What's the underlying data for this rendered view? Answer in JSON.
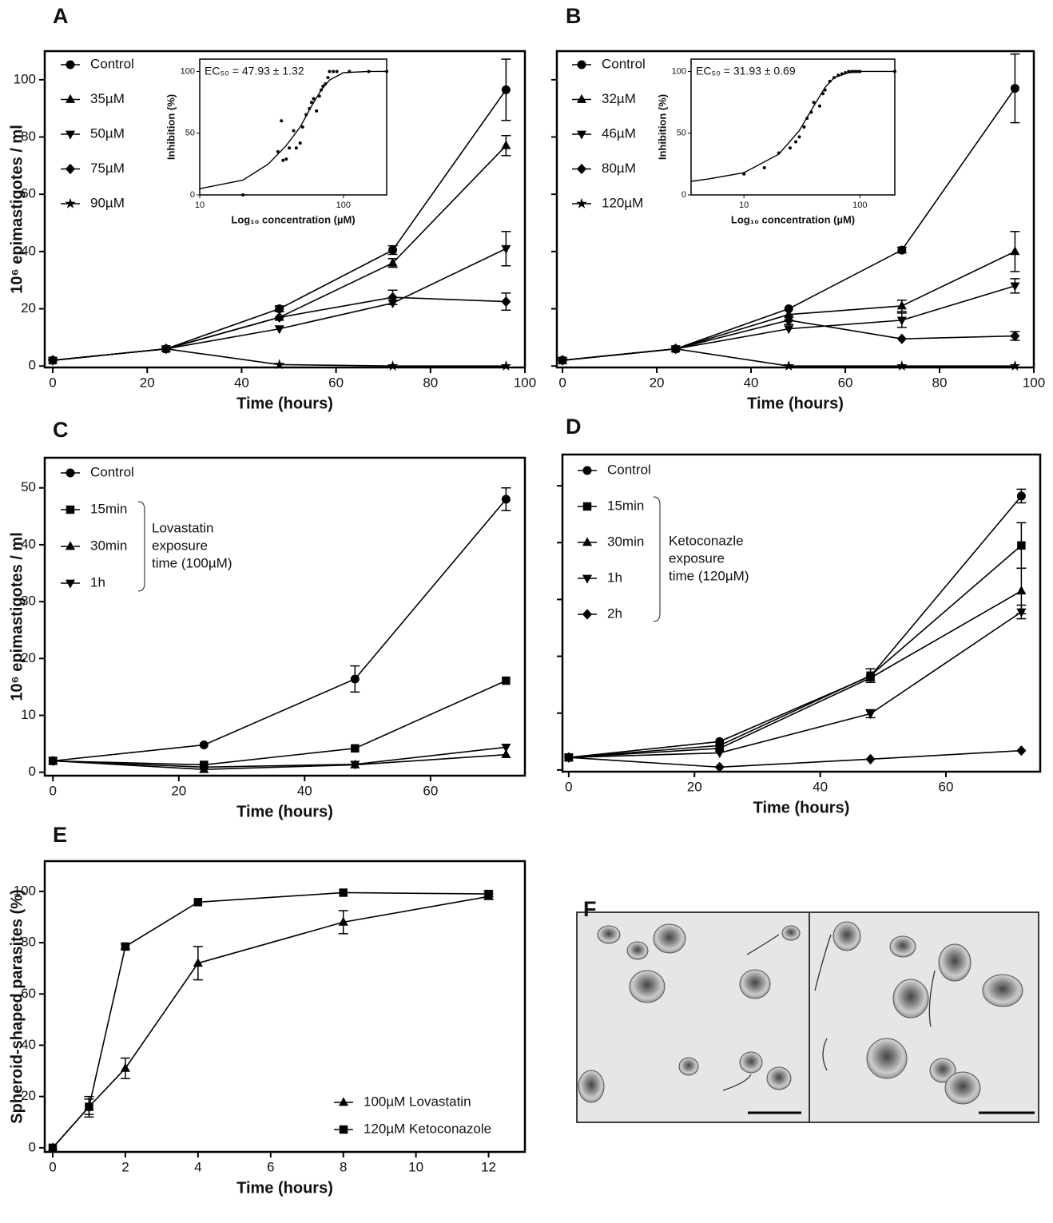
{
  "chart_data": [
    {
      "type": "line",
      "label": "A",
      "xlabel": "Time (hours)",
      "ylabel": "10⁶ epimastigotes / ml",
      "x": [
        0,
        24,
        48,
        72,
        96
      ],
      "xlim": [
        -1.7,
        100
      ],
      "ylim": [
        -0.5,
        110
      ],
      "xticks": [
        0,
        20,
        40,
        60,
        80,
        100
      ],
      "yticks": [
        0,
        20,
        40,
        60,
        80,
        100
      ],
      "show_ytick_labels": true,
      "legend": "top-left",
      "series": [
        {
          "name": "Control",
          "marker": "circle",
          "color": "#000",
          "values": [
            2,
            6,
            20,
            40.5,
            96.5
          ],
          "errors": [
            null,
            null,
            1,
            1.5,
            10.7
          ]
        },
        {
          "name": "35µM",
          "marker": "triangle",
          "color": "#000",
          "values": [
            2,
            6,
            17,
            36,
            77
          ],
          "errors": [
            null,
            null,
            null,
            1.5,
            3.5
          ]
        },
        {
          "name": "50µM",
          "marker": "triangle-down",
          "color": "#000",
          "values": [
            2,
            6,
            13,
            22,
            41
          ],
          "errors": [
            null,
            null,
            null,
            null,
            6
          ]
        },
        {
          "name": "75µM",
          "marker": "diamond",
          "color": "#000",
          "values": [
            2,
            6,
            17,
            24,
            22.5
          ],
          "errors": [
            null,
            null,
            null,
            2.5,
            3
          ]
        },
        {
          "name": "90µM",
          "marker": "star",
          "color": "#000",
          "values": [
            2,
            6,
            0.5,
            0,
            0
          ],
          "errors": [
            null,
            null,
            null,
            null,
            null
          ]
        }
      ]
    },
    {
      "type": "dose_response",
      "xlabel": "Log₁₀ concentration (µM)",
      "ylabel": "Inhibition (%)",
      "annotation": "EC₅₀ = 47.93 ± 1.32",
      "log_x": true,
      "xlim": [
        10,
        200
      ],
      "ylim": [
        0,
        110
      ],
      "xticks": [
        10,
        100
      ],
      "yticks": [
        0,
        50,
        100
      ],
      "points": {
        "x": [
          20,
          35,
          37,
          38,
          40,
          42,
          45,
          47,
          50,
          52,
          55,
          58,
          60,
          62,
          65,
          68,
          70,
          72,
          75,
          78,
          80,
          85,
          90,
          110,
          150,
          200
        ],
        "y": [
          0,
          35,
          60,
          28,
          29,
          38,
          52,
          38,
          42,
          55,
          65,
          70,
          75,
          78,
          68,
          80,
          85,
          88,
          90,
          95,
          100,
          100,
          100,
          100,
          100,
          100
        ]
      },
      "fit": {
        "x": [
          10,
          20,
          30,
          40,
          50,
          60,
          70,
          80,
          100,
          150,
          200
        ],
        "y": [
          5,
          12,
          25,
          40,
          55,
          72,
          85,
          93,
          99,
          100,
          100
        ]
      }
    },
    {
      "type": "line",
      "label": "B",
      "xlabel": "Time (hours)",
      "x": [
        0,
        24,
        48,
        72,
        96
      ],
      "xlim": [
        -1.2,
        100
      ],
      "ylim": [
        -0.5,
        110
      ],
      "xticks": [
        0,
        20,
        40,
        60,
        80,
        100
      ],
      "yticks": [
        0,
        20,
        40,
        60,
        80,
        100
      ],
      "show_ytick_labels": false,
      "legend": "top-left",
      "series": [
        {
          "name": "Control",
          "marker": "circle",
          "color": "#000",
          "values": [
            2,
            6,
            20,
            40.5,
            97
          ],
          "errors": [
            null,
            null,
            null,
            1,
            12
          ]
        },
        {
          "name": "32µM",
          "marker": "triangle",
          "color": "#000",
          "values": [
            2,
            6,
            18,
            21,
            40
          ],
          "errors": [
            null,
            null,
            null,
            2,
            7
          ]
        },
        {
          "name": "46µM",
          "marker": "triangle-down",
          "color": "#000",
          "values": [
            2,
            6,
            13,
            16,
            28
          ],
          "errors": [
            null,
            null,
            null,
            2.5,
            2.5
          ]
        },
        {
          "name": "80µM",
          "marker": "diamond",
          "color": "#000",
          "values": [
            2,
            6,
            16,
            9.5,
            10.5
          ],
          "errors": [
            null,
            null,
            1.5,
            null,
            1.5
          ]
        },
        {
          "name": "120µM",
          "marker": "star",
          "color": "#000",
          "values": [
            2,
            6,
            0,
            0,
            0
          ],
          "errors": [
            null,
            null,
            null,
            null,
            null
          ]
        }
      ]
    },
    {
      "type": "dose_response",
      "xlabel": "Log₁₀ concentration (µM)",
      "ylabel": "Inhibition (%)",
      "annotation": "EC₅₀ = 31.93 ± 0.69",
      "log_x": true,
      "xlim": [
        3.5,
        200
      ],
      "ylim": [
        0,
        110
      ],
      "xticks": [
        10,
        100
      ],
      "yticks": [
        0,
        50,
        100
      ],
      "points": {
        "x": [
          10,
          15,
          20,
          25,
          28,
          30,
          33,
          35,
          38,
          40,
          45,
          48,
          50,
          55,
          60,
          65,
          70,
          75,
          80,
          85,
          90,
          95,
          100,
          200
        ],
        "y": [
          17,
          22,
          34,
          38,
          43,
          47,
          55,
          62,
          67,
          75,
          72,
          82,
          85,
          92,
          95,
          97,
          98,
          99,
          100,
          100,
          100,
          100,
          100,
          100
        ]
      },
      "fit": {
        "x": [
          3.5,
          5,
          10,
          20,
          30,
          40,
          50,
          60,
          80,
          100,
          200
        ],
        "y": [
          11,
          13,
          18,
          33,
          52,
          72,
          87,
          95,
          99,
          100,
          100
        ]
      }
    },
    {
      "type": "line",
      "label": "C",
      "xlabel": "Time (hours)",
      "ylabel": "10⁶ epimastigotes / ml",
      "x": [
        0,
        24,
        48,
        72
      ],
      "xlim": [
        -1.3,
        75
      ],
      "ylim": [
        -0.6,
        55.3
      ],
      "xticks": [
        0,
        20,
        40,
        60
      ],
      "yticks": [
        0,
        10,
        20,
        30,
        40,
        50
      ],
      "show_ytick_labels": true,
      "legend": "top-left",
      "bracket_text": [
        "Lovastatin",
        "exposure",
        "time (100µM)"
      ],
      "series": [
        {
          "name": "Control",
          "marker": "circle",
          "color": "#000",
          "values": [
            2,
            4.8,
            16.4,
            48
          ],
          "errors": [
            null,
            null,
            2.3,
            2
          ]
        },
        {
          "name": "15min",
          "marker": "square",
          "color": "#000",
          "values": [
            2,
            1.3,
            4.2,
            16.1
          ],
          "errors": [
            null,
            null,
            null,
            null
          ]
        },
        {
          "name": "30min",
          "marker": "triangle",
          "color": "#000",
          "values": [
            2,
            0.5,
            1.3,
            3.1
          ],
          "errors": [
            null,
            null,
            null,
            null
          ]
        },
        {
          "name": "1h",
          "marker": "triangle-down",
          "color": "#000",
          "values": [
            2,
            0.9,
            1.4,
            4.4
          ],
          "errors": [
            null,
            null,
            null,
            null
          ]
        }
      ]
    },
    {
      "type": "line",
      "label": "D",
      "xlabel": "Time (hours)",
      "x": [
        0,
        24,
        48,
        72
      ],
      "xlim": [
        -1,
        75
      ],
      "ylim": [
        -0.3,
        55.5
      ],
      "xticks": [
        0,
        20,
        40,
        60
      ],
      "yticks": [
        0,
        10,
        20,
        30,
        40,
        50
      ],
      "show_ytick_labels": false,
      "legend": "top-left",
      "bracket_text": [
        "Ketoconazle",
        "exposure",
        "time (120µM)"
      ],
      "series": [
        {
          "name": "Control",
          "marker": "circle",
          "color": "#000",
          "values": [
            2.2,
            5,
            16.5,
            48.2
          ],
          "errors": [
            null,
            null,
            null,
            1.2
          ]
        },
        {
          "name": "15min",
          "marker": "square",
          "color": "#000",
          "values": [
            2.2,
            4.3,
            16.6,
            39.5
          ],
          "errors": [
            null,
            null,
            1.2,
            4
          ]
        },
        {
          "name": "30min",
          "marker": "triangle",
          "color": "#000",
          "values": [
            2.2,
            3.8,
            16.2,
            31.5
          ],
          "errors": [
            null,
            null,
            null,
            4
          ]
        },
        {
          "name": "1h",
          "marker": "triangle-down",
          "color": "#000",
          "values": [
            2.2,
            3,
            9.9,
            27.8
          ],
          "errors": [
            null,
            null,
            0.7,
            1.2
          ]
        },
        {
          "name": "2h",
          "marker": "diamond",
          "color": "#000",
          "values": [
            2.2,
            0.5,
            1.9,
            3.4
          ],
          "errors": [
            null,
            null,
            null,
            null
          ]
        }
      ]
    },
    {
      "type": "line",
      "label": "E",
      "xlabel": "Time (hours)",
      "ylabel": "Spheroid-shaped parasites (%)",
      "x": [
        0,
        1,
        2,
        4,
        8,
        12
      ],
      "xlim": [
        -0.22,
        13
      ],
      "ylim": [
        -1.6,
        111.8
      ],
      "xticks": [
        0,
        2,
        4,
        6,
        8,
        10,
        12
      ],
      "yticks": [
        0,
        20,
        40,
        60,
        80,
        100
      ],
      "show_ytick_labels": true,
      "legend": "bottom-right",
      "series": [
        {
          "name": "100µM Lovastatin",
          "marker": "triangle",
          "color": "#000",
          "values": [
            0,
            16,
            31,
            72,
            88,
            98
          ],
          "errors": [
            null,
            3,
            4,
            6.5,
            4.5,
            1
          ]
        },
        {
          "name": "120µM Ketoconazole",
          "marker": "square",
          "color": "#000",
          "values": [
            0,
            16,
            78.5,
            95.8,
            99.5,
            99
          ],
          "errors": [
            null,
            4,
            1,
            null,
            null,
            1
          ]
        }
      ]
    }
  ],
  "image_panel": {
    "label": "F"
  }
}
